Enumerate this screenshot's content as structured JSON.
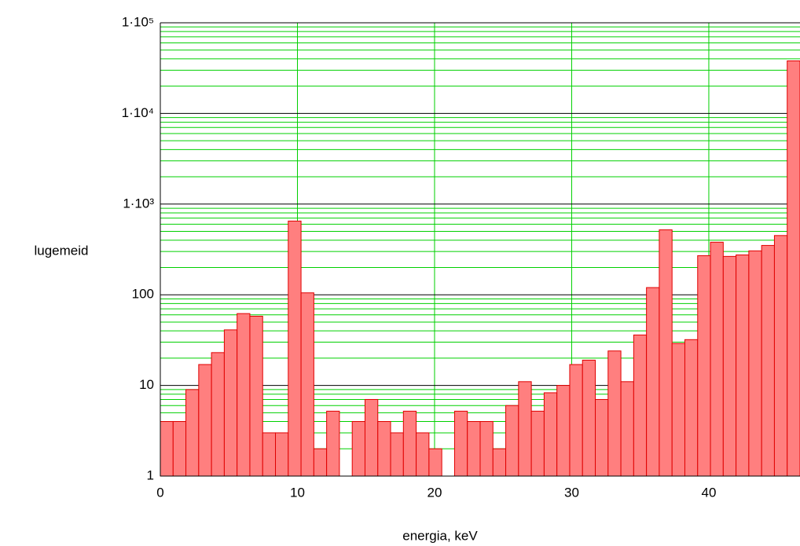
{
  "chart_data": {
    "type": "histogram",
    "x_label": "energia, keV",
    "y_label": "lugemeid",
    "bins": [
      0,
      0.933,
      1.866,
      2.799,
      3.732,
      4.665,
      5.598,
      6.531,
      7.464,
      8.397,
      9.33,
      10.263,
      11.196,
      12.129,
      13.062,
      13.995,
      14.928,
      15.861,
      16.794,
      17.727,
      18.66,
      19.593,
      20.526,
      21.459,
      22.392,
      23.325,
      24.258,
      25.191,
      26.124,
      27.057,
      27.99,
      28.923,
      29.856,
      30.789,
      31.722,
      32.655,
      33.588,
      34.521,
      35.454,
      36.387,
      37.32,
      38.253,
      39.186,
      40.119,
      41.052,
      41.985,
      42.918,
      43.851,
      44.784,
      45.717,
      46.65
    ],
    "values": [
      4,
      4,
      9,
      17,
      23,
      41,
      62,
      58,
      3,
      3,
      650,
      105,
      2,
      5.2,
      1,
      4,
      7,
      4,
      3,
      5.2,
      3,
      2,
      1,
      5.2,
      4,
      4,
      2,
      6,
      11,
      5.2,
      8.3,
      10,
      17,
      19,
      7,
      24,
      11,
      36,
      120,
      520,
      29,
      32,
      270,
      380,
      265,
      275,
      305,
      350,
      450,
      38000
    ],
    "color": "#ff7f7f",
    "edge_color": "#e00000",
    "xlim": [
      0,
      46.65
    ],
    "xticks": [
      0,
      10,
      20,
      30,
      40
    ],
    "ylim": [
      1,
      100000
    ],
    "y_scale": "log",
    "yticks": [
      1,
      10,
      100,
      {
        "value": 1000,
        "label": "1·10³"
      },
      {
        "value": 10000,
        "label": "1·10⁴"
      },
      {
        "value": 100000,
        "label": "1·10⁵"
      }
    ],
    "grid": true,
    "minor_grid": true,
    "grid_color": "#00d000",
    "major_grid_color": "#000000"
  }
}
